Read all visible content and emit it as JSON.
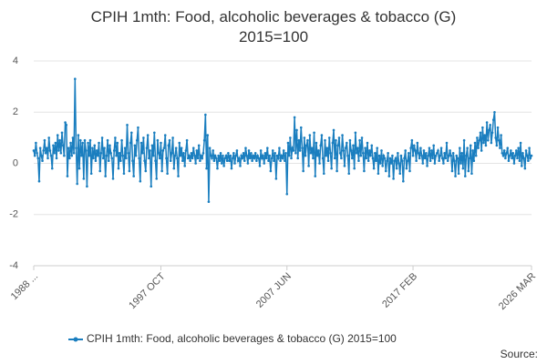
{
  "chart_data": {
    "type": "line",
    "title": "CPIH 1mth: Food, alcoholic beverages & tobacco (G) 2015=100",
    "source": "Source:",
    "categories": [
      "1988 ...",
      null,
      null,
      null,
      null,
      null,
      null,
      null,
      null,
      null,
      null,
      null,
      null,
      null,
      null,
      null,
      null,
      null,
      null,
      null,
      null,
      null,
      null,
      null,
      null,
      null,
      null,
      null,
      null,
      null,
      null,
      null,
      null,
      null,
      null,
      null,
      null,
      null,
      null,
      null,
      null,
      null,
      null,
      null,
      null,
      null,
      null,
      null,
      null,
      null,
      null,
      null,
      null,
      null,
      null,
      null,
      null,
      null,
      null,
      null,
      null,
      null,
      null,
      null,
      null,
      null,
      null,
      null,
      null,
      null,
      null,
      null,
      null,
      null,
      null,
      null,
      null,
      null,
      null,
      null,
      null,
      null,
      null,
      null,
      null,
      null,
      null,
      null,
      null,
      null,
      null,
      null,
      null,
      null,
      null,
      null,
      null,
      null,
      null,
      null,
      null,
      null,
      null,
      null,
      null,
      null,
      null,
      null,
      null,
      null,
      null,
      null,
      null,
      null,
      null,
      null,
      null,
      "1997 OCT",
      null,
      null,
      null,
      null,
      null,
      null,
      null,
      null,
      null,
      null,
      null,
      null,
      null,
      null,
      null,
      null,
      null,
      null,
      null,
      null,
      null,
      null,
      null,
      null,
      null,
      null,
      null,
      null,
      null,
      null,
      null,
      null,
      null,
      null,
      null,
      null,
      null,
      null,
      null,
      null,
      null,
      null,
      null,
      null,
      null,
      null,
      null,
      null,
      null,
      null,
      null,
      null,
      null,
      null,
      null,
      null,
      null,
      null,
      null,
      null,
      null,
      null,
      null,
      null,
      null,
      null,
      null,
      null,
      null,
      null,
      null,
      null,
      null,
      null,
      null,
      null,
      null,
      null,
      null,
      null,
      null,
      null,
      null,
      null,
      null,
      null,
      null,
      null,
      null,
      null,
      null,
      null,
      null,
      null,
      null,
      null,
      null,
      null,
      null,
      null,
      null,
      null,
      null,
      null,
      null,
      null,
      null,
      null,
      null,
      null,
      null,
      null,
      null,
      null,
      null,
      "2007 JUN",
      null,
      null,
      null,
      null,
      null,
      null,
      null,
      null,
      null,
      null,
      null,
      null,
      null,
      null,
      null,
      null,
      null,
      null,
      null,
      null,
      null,
      null,
      null,
      null,
      null,
      null,
      null,
      null,
      null,
      null,
      null,
      null,
      null,
      null,
      null,
      null,
      null,
      null,
      null,
      null,
      null,
      null,
      null,
      null,
      null,
      null,
      null,
      null,
      null,
      null,
      null,
      null,
      null,
      null,
      null,
      null,
      null,
      null,
      null,
      null,
      null,
      null,
      null,
      null,
      null,
      null,
      null,
      null,
      null,
      null,
      null,
      null,
      null,
      null,
      null,
      null,
      null,
      null,
      null,
      null,
      null,
      null,
      null,
      null,
      null,
      null,
      null,
      null,
      null,
      null,
      null,
      null,
      null,
      null,
      null,
      null,
      null,
      null,
      null,
      null,
      null,
      null,
      null,
      null,
      null,
      null,
      null,
      null,
      null,
      null,
      null,
      null,
      null,
      null,
      null,
      "2017 FEB",
      null,
      null,
      null,
      null,
      null,
      null,
      null,
      null,
      null,
      null,
      null,
      null,
      null,
      null,
      null,
      null,
      null,
      null,
      null,
      null,
      null,
      null,
      null,
      null,
      null,
      null,
      null,
      null,
      null,
      null,
      null,
      null,
      null,
      null,
      null,
      null,
      null,
      null,
      null,
      null,
      null,
      null,
      null,
      null,
      null,
      null,
      null,
      null,
      null,
      null,
      null,
      null,
      null,
      null,
      null,
      null,
      null,
      null,
      null,
      null,
      null,
      null,
      null,
      null,
      null,
      null,
      null,
      null,
      null,
      null,
      null,
      null,
      null,
      null,
      null,
      null,
      null,
      null,
      null,
      null,
      null,
      null,
      null,
      null,
      null,
      null,
      null,
      null,
      null,
      null,
      null,
      null,
      null,
      null,
      null,
      null,
      null,
      null,
      null,
      null,
      null,
      null,
      null,
      null,
      null,
      null,
      null,
      null,
      "2026 MAR"
    ],
    "series": [
      {
        "name": "CPIH 1mth: Food, alcoholic beverages & tobacco (G) 2015=100",
        "color": "#1a7ebf",
        "values": [
          0.5,
          0.3,
          0.8,
          0.4,
          0.2,
          -0.7,
          0.6,
          0.3,
          0.1,
          0.5,
          0.9,
          0.4,
          0.6,
          0.2,
          1.0,
          0.5,
          0.3,
          -0.2,
          0.7,
          0.4,
          0.8,
          0.2,
          1.1,
          0.5,
          0.9,
          0.4,
          1.2,
          0.7,
          0.3,
          1.6,
          1.5,
          -0.5,
          0.6,
          0.2,
          0.8,
          0.3,
          1.0,
          0.4,
          3.3,
          0.6,
          -0.8,
          1.1,
          -0.2,
          0.9,
          0.3,
          0.8,
          -0.6,
          0.9,
          0.5,
          -0.9,
          0.8,
          0.3,
          0.9,
          -0.4,
          0.6,
          0.2,
          0.7,
          0.1,
          0.5,
          0.3,
          0.8,
          -0.3,
          0.4,
          1.0,
          0.2,
          0.6,
          -0.5,
          0.3,
          0.9,
          0.1,
          0.7,
          0.4,
          0.2,
          -0.6,
          0.5,
          1.0,
          0.3,
          0.8,
          -0.2,
          0.4,
          0.1,
          0.9,
          0.3,
          -0.4,
          0.6,
          0.2,
          1.5,
          0.4,
          -0.3,
          0.8,
          1.2,
          0.1,
          -0.5,
          0.7,
          0.3,
          0.9,
          1.4,
          0.2,
          -0.7,
          0.8,
          0.4,
          1.0,
          0.1,
          -0.3,
          0.6,
          1.1,
          0.2,
          0.5,
          -0.9,
          0.7,
          0.3,
          1.2,
          0.1,
          -0.6,
          0.9,
          0.4,
          0.2,
          0.8,
          -0.3,
          0.5,
          0.6,
          1.1,
          0.2,
          -0.4,
          0.7,
          0.9,
          0.1,
          0.4,
          1.0,
          -0.2,
          0.3,
          0.6,
          0.2,
          -0.5,
          0.8,
          0.3,
          0.6,
          0.1,
          0.4,
          -0.1,
          0.5,
          0.9,
          0.2,
          0.3,
          0.1,
          0.4,
          0.2,
          0.6,
          0.3,
          0.0,
          0.5,
          0.2,
          0.7,
          0.1,
          0.3,
          0.2,
          0.4,
          0.9,
          1.9,
          -0.2,
          1.1,
          -1.5,
          0.6,
          0.3,
          0.2,
          0.5,
          0.1,
          0.3,
          0.2,
          -0.2,
          0.3,
          0.1,
          0.4,
          0.0,
          0.3,
          -0.1,
          0.2,
          0.3,
          0.1,
          0.4,
          0.1,
          0.3,
          -0.2,
          0.2,
          0.4,
          0.0,
          0.3,
          0.5,
          0.1,
          0.2,
          -0.1,
          0.3,
          0.2,
          0.4,
          0.1,
          0.6,
          0.3,
          0.0,
          0.5,
          0.2,
          0.4,
          0.1,
          0.3,
          0.2,
          0.4,
          0.1,
          0.3,
          0.2,
          -0.1,
          0.5,
          0.2,
          0.3,
          0.0,
          0.4,
          0.2,
          0.6,
          0.1,
          0.3,
          -0.3,
          0.2,
          0.5,
          0.1,
          0.4,
          -0.6,
          0.3,
          0.2,
          0.6,
          0.1,
          0.3,
          0.2,
          0.5,
          0.1,
          0.4,
          -1.2,
          0.8,
          0.3,
          1.0,
          0.2,
          0.6,
          0.5,
          1.8,
          0.4,
          1.3,
          0.2,
          0.9,
          0.5,
          1.4,
          0.6,
          -0.3,
          1.0,
          0.3,
          0.7,
          0.9,
          -0.1,
          1.1,
          0.4,
          0.6,
          0.2,
          1.2,
          -0.5,
          0.8,
          0.3,
          0.5,
          0.0,
          0.7,
          1.1,
          0.2,
          -0.4,
          0.9,
          0.3,
          0.6,
          0.1,
          1.0,
          0.4,
          -0.2,
          0.8,
          1.3,
          0.2,
          0.9,
          -0.3,
          0.7,
          1.0,
          0.4,
          0.2,
          1.1,
          0.5,
          -0.1,
          0.6,
          0.8,
          0.3,
          -0.4,
          0.9,
          0.5,
          0.2,
          0.7,
          -0.2,
          1.2,
          0.4,
          0.6,
          0.1,
          0.9,
          0.3,
          1.0,
          0.4,
          -0.3,
          0.6,
          0.2,
          0.8,
          0.1,
          0.5,
          0.3,
          0.7,
          0.2,
          -0.2,
          0.4,
          0.1,
          0.6,
          -0.4,
          0.3,
          0.0,
          0.5,
          -0.1,
          0.3,
          0.2,
          -0.3,
          0.1,
          0.4,
          -0.5,
          0.2,
          0.0,
          0.3,
          -0.6,
          0.1,
          0.2,
          -0.2,
          0.4,
          0.0,
          -0.4,
          0.3,
          0.1,
          -0.7,
          0.2,
          0.5,
          -0.2,
          0.1,
          0.4,
          -0.3,
          0.6,
          0.9,
          0.3,
          0.7,
          0.5,
          0.1,
          0.8,
          0.4,
          0.2,
          0.6,
          0.3,
          0.0,
          0.5,
          0.2,
          0.4,
          -0.1,
          0.3,
          0.6,
          0.1,
          0.5,
          0.2,
          0.7,
          0.0,
          0.3,
          0.4,
          0.5,
          0.1,
          0.3,
          0.6,
          0.2,
          0.0,
          0.4,
          0.2,
          0.8,
          0.1,
          0.3,
          0.5,
          0.3,
          -0.3,
          0.4,
          0.1,
          -0.5,
          0.3,
          0.2,
          -0.4,
          0.6,
          0.0,
          0.4,
          -0.2,
          0.9,
          -0.5,
          0.3,
          0.6,
          -0.3,
          0.2,
          0.7,
          -0.4,
          0.5,
          0.1,
          0.8,
          0.3,
          1.0,
          0.6,
          0.9,
          1.2,
          0.5,
          1.4,
          0.8,
          1.1,
          0.7,
          1.6,
          0.9,
          1.3,
          1.5,
          0.8,
          1.2,
          1.7,
          2.0,
          1.0,
          0.7,
          1.4,
          0.9,
          0.6,
          1.1,
          0.4,
          0.3,
          0.5,
          0.2,
          0.4,
          0.6,
          0.1,
          0.3,
          0.5,
          0.2,
          0.4,
          0.0,
          0.3,
          0.5,
          0.2,
          0.6,
          0.1,
          0.8,
          -0.1,
          0.4,
          0.2,
          -0.2,
          0.5,
          0.3,
          0.1,
          0.6,
          0.2,
          0.3
        ]
      }
    ],
    "ylim": [
      -4,
      4
    ],
    "yticks": [
      -4,
      -2,
      0,
      2,
      4
    ],
    "grid": true,
    "legend": "bottom"
  }
}
